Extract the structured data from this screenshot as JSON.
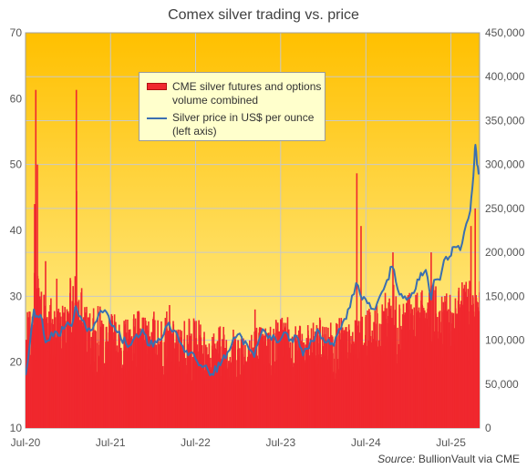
{
  "chart_data": {
    "type": "bar+line",
    "title": "Comex silver trading vs. price",
    "source_label": "Source:",
    "source_text": "BullionVault via CME",
    "x_ticks": [
      "Jul-20",
      "Jul-21",
      "Jul-22",
      "Jul-23",
      "Jul-24",
      "Jul-25"
    ],
    "x_range": [
      "2020-07",
      "2025-10"
    ],
    "left_axis": {
      "min": 10,
      "max": 70,
      "ticks": [
        "10",
        "20",
        "30",
        "40",
        "50",
        "60",
        "70"
      ]
    },
    "right_axis": {
      "min": 0,
      "max": 450000,
      "ticks": [
        "0",
        "50,000",
        "100,000",
        "150,000",
        "200,000",
        "250,000",
        "300,000",
        "350,000",
        "400,000",
        "450,000"
      ]
    },
    "grid": true,
    "legend_position": "top-left",
    "colors": {
      "bars": "#f0282e",
      "line": "#3a6fb0",
      "legend_bg": "#ffffcc",
      "bg_top": "#ffc000",
      "bg_bottom": "#fff5a8"
    },
    "series": [
      {
        "name": "CME silver futures and options\nvolume combined",
        "axis": "right",
        "kind": "bar",
        "base_monthly": [
          95000,
          135000,
          120000,
          110000,
          105000,
          100000,
          130000,
          115000,
          105000,
          98000,
          100000,
          90000,
          95000,
          88000,
          92000,
          96000,
          90000,
          98000,
          90000,
          95000,
          88000,
          85000,
          90000,
          92000,
          88000,
          82000,
          80000,
          86000,
          84000,
          82000,
          85000,
          80000,
          86000,
          84000,
          88000,
          92000,
          95000,
          86000,
          85000,
          84000,
          86000,
          90000,
          88000,
          92000,
          90000,
          86000,
          88000,
          95000,
          98000,
          100000,
          110000,
          120000,
          115000,
          112000,
          110000,
          112000,
          115000,
          118000,
          110000,
          112000,
          115000,
          120000,
          125000,
          120000,
          115000,
          118000,
          110000,
          115000
        ],
        "spikes": [
          {
            "date": "2020-08-06",
            "value": 255000
          },
          {
            "date": "2020-08-11",
            "value": 385000
          },
          {
            "date": "2020-08-18",
            "value": 300000
          },
          {
            "date": "2020-09-22",
            "value": 190000
          },
          {
            "date": "2020-11-09",
            "value": 170000
          },
          {
            "date": "2021-02-01",
            "value": 385000
          },
          {
            "date": "2021-02-02",
            "value": 270000
          },
          {
            "date": "2022-03-08",
            "value": 140000
          },
          {
            "date": "2023-03-10",
            "value": 135000
          },
          {
            "date": "2024-05-20",
            "value": 290000
          },
          {
            "date": "2024-06-07",
            "value": 230000
          },
          {
            "date": "2024-10-22",
            "value": 200000
          },
          {
            "date": "2025-04-04",
            "value": 200000
          },
          {
            "date": "2025-09-22",
            "value": 230000
          },
          {
            "date": "2025-10-10",
            "value": 250000
          }
        ]
      },
      {
        "name": "Silver price in US$ per ounce\n(left axis)",
        "axis": "left",
        "kind": "line",
        "x": [
          "2020-07-01",
          "2020-07-20",
          "2020-08-06",
          "2020-08-20",
          "2020-09-10",
          "2020-09-25",
          "2020-10-20",
          "2020-11-20",
          "2020-12-20",
          "2021-01-15",
          "2021-02-01",
          "2021-02-15",
          "2021-03-15",
          "2021-04-15",
          "2021-05-20",
          "2021-06-15",
          "2021-07-15",
          "2021-08-15",
          "2021-09-20",
          "2021-10-20",
          "2021-11-15",
          "2021-12-15",
          "2022-01-15",
          "2022-02-15",
          "2022-03-08",
          "2022-04-15",
          "2022-05-15",
          "2022-06-15",
          "2022-07-15",
          "2022-08-15",
          "2022-09-01",
          "2022-10-15",
          "2022-11-15",
          "2022-12-20",
          "2023-01-15",
          "2023-02-15",
          "2023-03-10",
          "2023-04-15",
          "2023-05-15",
          "2023-06-15",
          "2023-07-15",
          "2023-08-15",
          "2023-09-15",
          "2023-10-05",
          "2023-11-15",
          "2023-12-05",
          "2024-01-15",
          "2024-02-15",
          "2024-03-15",
          "2024-04-15",
          "2024-05-20",
          "2024-06-15",
          "2024-07-15",
          "2024-08-10",
          "2024-09-15",
          "2024-10-22",
          "2024-11-15",
          "2024-12-15",
          "2025-01-15",
          "2025-02-15",
          "2025-03-15",
          "2025-04-07",
          "2025-04-20",
          "2025-05-15",
          "2025-06-10",
          "2025-06-25",
          "2025-07-15",
          "2025-08-10",
          "2025-09-05",
          "2025-09-22",
          "2025-10-01",
          "2025-10-10",
          "2025-10-14",
          "2025-10-21",
          "2025-10-28"
        ],
        "y": [
          18,
          23,
          28,
          27,
          26.5,
          23,
          24.5,
          24,
          25.5,
          25.5,
          28.5,
          27,
          25.5,
          25,
          27.8,
          27.5,
          25.5,
          23.5,
          22.5,
          24.2,
          25,
          22.5,
          23,
          24.3,
          26,
          24,
          21.5,
          21.5,
          19.5,
          19.5,
          18,
          19.5,
          21.5,
          23.7,
          23.8,
          22,
          20.8,
          25,
          24,
          23,
          24.5,
          23.5,
          23.5,
          21,
          23.2,
          25,
          23,
          22.5,
          25,
          28,
          32,
          29.5,
          29,
          28,
          31,
          34.5,
          31,
          30,
          30.5,
          32.5,
          34,
          29.5,
          32.5,
          32.5,
          36,
          36,
          37.5,
          37,
          41,
          43,
          46.5,
          51,
          53,
          50,
          48.5
        ]
      }
    ]
  }
}
